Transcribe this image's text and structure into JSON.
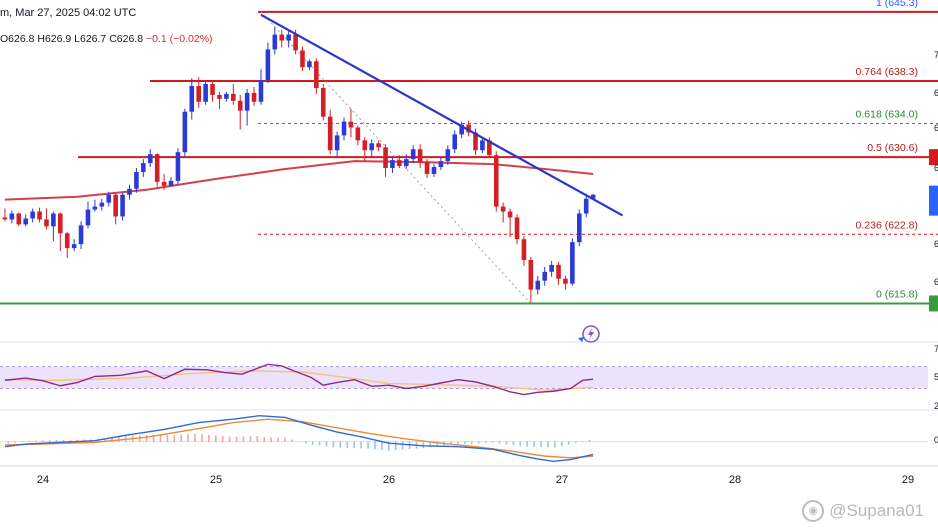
{
  "header": {
    "title_fragment": "m, Mar 27, 2025 04:02 UTC",
    "ohlc": {
      "open": "O626.8",
      "high": "H626.9",
      "low": "L626.7",
      "close": "C626.8",
      "change": "−0.1 (−0.02%)"
    }
  },
  "watermark": "@Supana01",
  "colors": {
    "bull": "#2d3bd6",
    "bear": "#d32026",
    "trendline": "#2b34c8",
    "resistance": "#d3181f",
    "support": "#3a9b3f",
    "fib": "#2a9a3a",
    "ma": "#d3404a",
    "rsi_band": "#ede2fb",
    "rsi": "#8a2a8e",
    "rsi_ma": "#f5c27a",
    "macd": "#2f6bd6",
    "signal": "#f08a36",
    "hist_up": "#f4a3a8",
    "hist_dn": "#9bc2ea"
  },
  "chart_data": {
    "type": "candlestick",
    "y_range": [
      612,
      646.5
    ],
    "x_axis": {
      "tick_labels": [
        {
          "label": "24",
          "day": 24
        },
        {
          "label": "25",
          "day": 25
        },
        {
          "label": "26",
          "day": 26
        },
        {
          "label": "27",
          "day": 27
        },
        {
          "label": "28",
          "day": 28
        },
        {
          "label": "29",
          "day": 29
        }
      ]
    },
    "fib_levels": [
      {
        "ratio": "1",
        "value": 645.3,
        "label": "1 (645.3)",
        "style": "solid-red"
      },
      {
        "ratio": "0.764",
        "value": 638.3,
        "label": "0.764 (638.3)",
        "style": "solid-red"
      },
      {
        "ratio": "0.618",
        "value": 634.0,
        "label": "0.618 (634.0)",
        "style": "dashed-green"
      },
      {
        "ratio": "0.5",
        "value": 630.6,
        "label": "0.5 (630.6)",
        "style": "solid-red"
      },
      {
        "ratio": "0.236",
        "value": 622.8,
        "label": "0.236 (622.8)",
        "style": "dashed-red"
      },
      {
        "ratio": "0",
        "value": 615.8,
        "label": "0 (615.8)",
        "style": "solid-green"
      }
    ],
    "trendline": [
      {
        "day": 25.26,
        "value": 645.0
      },
      {
        "day": 27.35,
        "value": 624.7
      }
    ],
    "candles": [
      [
        23.78,
        624.5,
        624.3,
        625.4,
        624.1
      ],
      [
        23.82,
        624.3,
        624.9,
        625.2,
        623.9
      ],
      [
        23.86,
        624.9,
        623.8,
        625.0,
        623.6
      ],
      [
        23.9,
        623.8,
        624.4,
        624.8,
        623.6
      ],
      [
        23.94,
        624.4,
        625.1,
        625.4,
        624.0
      ],
      [
        23.98,
        625.1,
        624.3,
        625.5,
        624.0
      ],
      [
        24.02,
        624.3,
        623.6,
        625.4,
        623.3
      ],
      [
        24.06,
        623.6,
        624.9,
        625.1,
        622.1
      ],
      [
        24.1,
        624.9,
        622.9,
        625.0,
        621.1
      ],
      [
        24.14,
        622.9,
        621.4,
        623.0,
        620.4
      ],
      [
        24.18,
        621.4,
        621.8,
        622.3,
        621.1
      ],
      [
        24.22,
        621.8,
        623.7,
        624.1,
        621.3
      ],
      [
        24.26,
        623.7,
        625.3,
        626.1,
        623.4
      ],
      [
        24.3,
        625.3,
        625.6,
        626.3,
        625.1
      ],
      [
        24.34,
        625.6,
        626.0,
        626.4,
        625.2
      ],
      [
        24.38,
        626.0,
        626.8,
        627.1,
        625.6
      ],
      [
        24.42,
        626.8,
        624.6,
        626.9,
        623.8
      ],
      [
        24.46,
        624.6,
        626.8,
        627.0,
        624.2
      ],
      [
        24.5,
        626.8,
        627.4,
        627.8,
        626.3
      ],
      [
        24.54,
        627.4,
        629.1,
        629.5,
        627.0
      ],
      [
        24.58,
        629.1,
        630.0,
        630.4,
        628.6
      ],
      [
        24.62,
        630.0,
        630.9,
        631.4,
        629.6
      ],
      [
        24.66,
        630.9,
        628.1,
        631.0,
        627.6
      ],
      [
        24.7,
        628.1,
        627.7,
        628.9,
        627.3
      ],
      [
        24.74,
        627.7,
        628.2,
        628.6,
        627.6
      ],
      [
        24.78,
        628.2,
        631.1,
        631.5,
        627.8
      ],
      [
        24.82,
        631.1,
        635.2,
        635.5,
        630.6
      ],
      [
        24.86,
        635.2,
        637.8,
        638.6,
        634.4
      ],
      [
        24.9,
        637.8,
        636.2,
        638.7,
        635.6
      ],
      [
        24.94,
        636.2,
        638.0,
        638.3,
        635.9
      ],
      [
        24.98,
        638.0,
        636.9,
        638.3,
        636.2
      ],
      [
        25.02,
        636.9,
        636.5,
        637.2,
        635.5
      ],
      [
        25.06,
        636.5,
        637.0,
        637.2,
        636.2
      ],
      [
        25.1,
        637.0,
        636.3,
        638.0,
        635.9
      ],
      [
        25.14,
        636.3,
        635.3,
        636.9,
        633.4
      ],
      [
        25.18,
        635.3,
        637.1,
        637.5,
        633.8
      ],
      [
        25.22,
        637.1,
        636.2,
        637.7,
        635.8
      ],
      [
        25.26,
        636.2,
        638.4,
        639.5,
        635.9
      ],
      [
        25.3,
        638.4,
        641.5,
        642.2,
        638.1
      ],
      [
        25.34,
        641.5,
        643.0,
        643.8,
        641.0
      ],
      [
        25.38,
        643.0,
        642.4,
        643.5,
        641.7
      ],
      [
        25.42,
        642.4,
        643.0,
        643.4,
        641.7
      ],
      [
        25.46,
        643.0,
        641.4,
        643.5,
        641.0
      ],
      [
        25.5,
        641.4,
        639.7,
        641.8,
        639.3
      ],
      [
        25.54,
        639.7,
        640.3,
        640.5,
        639.4
      ],
      [
        25.58,
        640.3,
        637.6,
        640.6,
        637.0
      ],
      [
        25.62,
        637.6,
        634.7,
        638.0,
        634.3
      ],
      [
        25.66,
        634.7,
        631.3,
        635.4,
        630.9
      ],
      [
        25.7,
        631.3,
        632.8,
        633.2,
        630.6
      ],
      [
        25.74,
        632.8,
        634.2,
        634.6,
        632.3
      ],
      [
        25.78,
        634.2,
        633.6,
        635.5,
        632.6
      ],
      [
        25.82,
        633.6,
        632.3,
        633.8,
        631.8
      ],
      [
        25.86,
        632.3,
        631.3,
        632.6,
        630.2
      ],
      [
        25.9,
        631.3,
        632.0,
        632.4,
        630.6
      ],
      [
        25.94,
        632.0,
        631.6,
        632.3,
        631.2
      ],
      [
        25.98,
        631.6,
        629.5,
        631.9,
        628.6
      ],
      [
        26.02,
        629.5,
        630.3,
        630.6,
        629.0
      ],
      [
        26.06,
        630.3,
        629.7,
        630.8,
        629.5
      ],
      [
        26.1,
        629.7,
        630.4,
        630.9,
        629.4
      ],
      [
        26.14,
        630.4,
        631.4,
        631.8,
        630.0
      ],
      [
        26.18,
        631.4,
        630.1,
        631.9,
        629.5
      ],
      [
        26.22,
        630.1,
        628.9,
        630.4,
        628.5
      ],
      [
        26.26,
        628.9,
        629.6,
        629.9,
        628.6
      ],
      [
        26.3,
        629.6,
        630.2,
        630.6,
        629.3
      ],
      [
        26.34,
        630.2,
        631.4,
        631.8,
        629.8
      ],
      [
        26.38,
        631.4,
        632.9,
        633.3,
        631.0
      ],
      [
        26.42,
        632.9,
        633.9,
        634.2,
        632.5
      ],
      [
        26.46,
        633.9,
        633.1,
        634.3,
        632.7
      ],
      [
        26.5,
        633.1,
        631.3,
        633.5,
        630.8
      ],
      [
        26.54,
        631.3,
        632.3,
        632.6,
        631.0
      ],
      [
        26.58,
        632.3,
        630.8,
        632.6,
        630.5
      ],
      [
        26.62,
        630.8,
        625.6,
        631.2,
        625.1
      ],
      [
        26.66,
        625.6,
        625.1,
        626.0,
        624.0
      ],
      [
        26.7,
        625.1,
        624.5,
        625.4,
        622.5
      ],
      [
        26.74,
        624.5,
        622.3,
        624.8,
        621.8
      ],
      [
        26.78,
        622.3,
        620.2,
        622.6,
        619.6
      ],
      [
        26.82,
        620.2,
        617.2,
        620.5,
        615.9
      ],
      [
        26.86,
        617.2,
        618.1,
        618.6,
        616.7
      ],
      [
        26.9,
        618.1,
        619.0,
        619.5,
        617.6
      ],
      [
        26.94,
        619.0,
        619.7,
        620.1,
        618.5
      ],
      [
        26.98,
        619.7,
        618.3,
        620.0,
        617.7
      ],
      [
        27.02,
        618.3,
        617.8,
        618.6,
        617.2
      ],
      [
        27.06,
        617.8,
        622.0,
        622.4,
        617.6
      ],
      [
        27.1,
        622.0,
        624.9,
        625.3,
        621.6
      ],
      [
        27.14,
        624.9,
        626.4,
        626.9,
        624.5
      ],
      [
        27.18,
        626.4,
        626.8,
        626.9,
        626.3
      ]
    ],
    "moving_average": [
      [
        23.78,
        626.3
      ],
      [
        24.2,
        626.6
      ],
      [
        24.6,
        627.3
      ],
      [
        25.0,
        628.4
      ],
      [
        25.4,
        629.4
      ],
      [
        25.8,
        630.2
      ],
      [
        26.2,
        630.1
      ],
      [
        26.6,
        629.9
      ],
      [
        26.9,
        629.4
      ],
      [
        27.18,
        628.9
      ]
    ],
    "rsi": {
      "range": [
        0,
        100
      ],
      "band": [
        30,
        70
      ],
      "rsi": [
        [
          23.78,
          45
        ],
        [
          23.9,
          49
        ],
        [
          24.0,
          44
        ],
        [
          24.1,
          35
        ],
        [
          24.2,
          41
        ],
        [
          24.3,
          52
        ],
        [
          24.45,
          54
        ],
        [
          24.6,
          62
        ],
        [
          24.7,
          48
        ],
        [
          24.82,
          65
        ],
        [
          24.95,
          64
        ],
        [
          25.05,
          59
        ],
        [
          25.15,
          56
        ],
        [
          25.25,
          68
        ],
        [
          25.3,
          74
        ],
        [
          25.38,
          71
        ],
        [
          25.45,
          62
        ],
        [
          25.55,
          50
        ],
        [
          25.62,
          36
        ],
        [
          25.7,
          41
        ],
        [
          25.8,
          46
        ],
        [
          25.9,
          34
        ],
        [
          26.0,
          36
        ],
        [
          26.1,
          30
        ],
        [
          26.2,
          34
        ],
        [
          26.3,
          40
        ],
        [
          26.4,
          46
        ],
        [
          26.5,
          42
        ],
        [
          26.6,
          34
        ],
        [
          26.7,
          24
        ],
        [
          26.78,
          19
        ],
        [
          26.86,
          23
        ],
        [
          26.95,
          25
        ],
        [
          27.05,
          30
        ],
        [
          27.12,
          45
        ],
        [
          27.18,
          47
        ]
      ],
      "rsi_ma": [
        [
          23.78,
          46
        ],
        [
          24.1,
          45
        ],
        [
          24.5,
          49
        ],
        [
          24.9,
          58
        ],
        [
          25.2,
          62
        ],
        [
          25.5,
          60
        ],
        [
          25.8,
          48
        ],
        [
          26.0,
          39
        ],
        [
          26.3,
          37
        ],
        [
          26.6,
          34
        ],
        [
          26.9,
          27
        ],
        [
          27.18,
          32
        ]
      ]
    },
    "macd": {
      "range": [
        -2.5,
        3.2
      ],
      "macd": [
        [
          23.78,
          -0.6
        ],
        [
          23.9,
          -0.3
        ],
        [
          24.1,
          -0.1
        ],
        [
          24.3,
          0.1
        ],
        [
          24.5,
          0.8
        ],
        [
          24.7,
          1.4
        ],
        [
          24.9,
          2.2
        ],
        [
          25.1,
          2.6
        ],
        [
          25.25,
          3.0
        ],
        [
          25.4,
          2.8
        ],
        [
          25.55,
          1.9
        ],
        [
          25.7,
          1.1
        ],
        [
          25.85,
          0.5
        ],
        [
          26.0,
          -0.2
        ],
        [
          26.2,
          -0.5
        ],
        [
          26.4,
          -0.6
        ],
        [
          26.6,
          -0.9
        ],
        [
          26.75,
          -1.6
        ],
        [
          26.85,
          -2.0
        ],
        [
          26.95,
          -2.3
        ],
        [
          27.05,
          -2.1
        ],
        [
          27.18,
          -1.5
        ]
      ],
      "signal": [
        [
          23.78,
          -0.4
        ],
        [
          24.0,
          -0.3
        ],
        [
          24.3,
          -0.1
        ],
        [
          24.6,
          0.5
        ],
        [
          24.9,
          1.5
        ],
        [
          25.1,
          2.2
        ],
        [
          25.3,
          2.6
        ],
        [
          25.5,
          2.3
        ],
        [
          25.7,
          1.6
        ],
        [
          25.9,
          0.9
        ],
        [
          26.1,
          0.3
        ],
        [
          26.3,
          -0.2
        ],
        [
          26.5,
          -0.6
        ],
        [
          26.7,
          -1.1
        ],
        [
          26.9,
          -1.7
        ],
        [
          27.05,
          -1.9
        ],
        [
          27.18,
          -1.7
        ]
      ]
    }
  }
}
